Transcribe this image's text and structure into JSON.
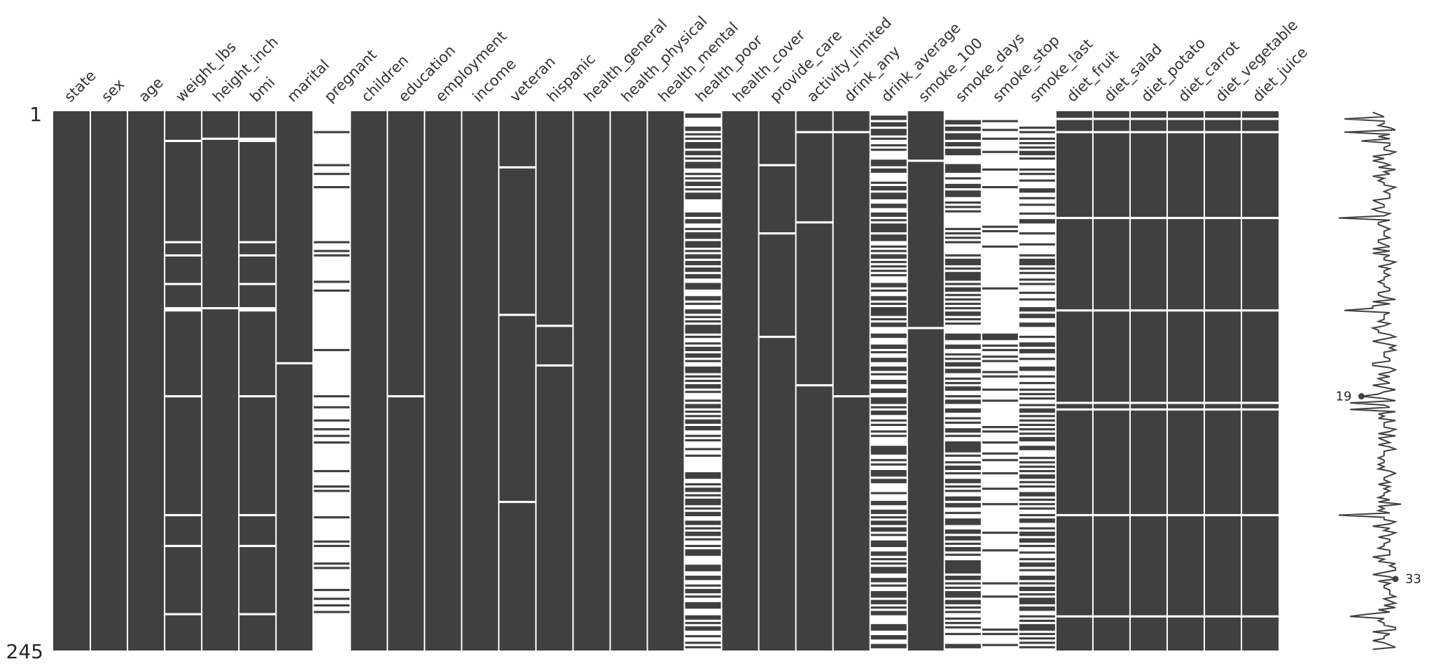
{
  "chart_data": {
    "type": "missingness-matrix",
    "n_rows": 245,
    "row_tick_labels": [
      "1",
      "245"
    ],
    "filled_color": "#404040",
    "missing_color": "#ffffff",
    "columns": [
      {
        "name": "state",
        "missing_rows": []
      },
      {
        "name": "sex",
        "missing_rows": []
      },
      {
        "name": "age",
        "missing_rows": []
      },
      {
        "name": "weight_lbs",
        "missing_rows": [
          14,
          60,
          66,
          79,
          90,
          91,
          130,
          184,
          198,
          229
        ]
      },
      {
        "name": "height_inch",
        "missing_rows": [
          13,
          90
        ]
      },
      {
        "name": "bmi",
        "missing_rows": [
          13,
          14,
          60,
          66,
          79,
          90,
          91,
          130,
          184,
          198,
          229
        ]
      },
      {
        "name": "marital",
        "missing_rows": [
          115
        ]
      },
      {
        "name": "pregnant",
        "filled_rows": [
          10,
          25,
          29,
          35,
          60,
          64,
          66,
          78,
          82,
          109,
          130,
          135,
          141,
          145,
          148,
          151,
          164,
          171,
          173,
          185,
          196,
          198,
          206,
          208,
          218,
          222,
          225,
          228
        ]
      },
      {
        "name": "children",
        "missing_rows": []
      },
      {
        "name": "education",
        "missing_rows": [
          130
        ]
      },
      {
        "name": "employment",
        "missing_rows": []
      },
      {
        "name": "income",
        "missing_rows": []
      },
      {
        "name": "veteran",
        "missing_rows": [
          26,
          93,
          178
        ]
      },
      {
        "name": "hispanic",
        "missing_rows": [
          98,
          116
        ]
      },
      {
        "name": "health_general",
        "missing_rows": []
      },
      {
        "name": "health_physical",
        "missing_rows": []
      },
      {
        "name": "health_mental",
        "missing_rows": []
      },
      {
        "name": "health_poor",
        "filled_rows": [
          2,
          3,
          8,
          9,
          11,
          13,
          15,
          16,
          17,
          19,
          20,
          22,
          24,
          25,
          26,
          29,
          31,
          33,
          34,
          36,
          38,
          39,
          40,
          47,
          48,
          50,
          51,
          54,
          56,
          57,
          58,
          60,
          61,
          62,
          64,
          66,
          67,
          69,
          70,
          72,
          73,
          75,
          76,
          79,
          80,
          81,
          85,
          86,
          88,
          91,
          92,
          94,
          96,
          98,
          99,
          100,
          101,
          103,
          106,
          108,
          109,
          111,
          112,
          114,
          117,
          118,
          119,
          121,
          123,
          125,
          126,
          128,
          132,
          134,
          135,
          137,
          139,
          141,
          142,
          144,
          145,
          148,
          150,
          154,
          157,
          165,
          166,
          167,
          170,
          172,
          173,
          175,
          177,
          178,
          179,
          181,
          183,
          184,
          187,
          188,
          190,
          192,
          193,
          195,
          198,
          200,
          201,
          202,
          207,
          208,
          209,
          212,
          213,
          216,
          218,
          219,
          221,
          224,
          225,
          226,
          230,
          231,
          233,
          235,
          236,
          239,
          242,
          244
        ]
      },
      {
        "name": "health_cover",
        "missing_rows": []
      },
      {
        "name": "provide_care",
        "missing_rows": [
          25,
          56,
          103
        ]
      },
      {
        "name": "activity_limited",
        "missing_rows": [
          10,
          51,
          125
        ]
      },
      {
        "name": "drink_any",
        "missing_rows": [
          10,
          130
        ]
      },
      {
        "name": "drink_average",
        "filled_rows": [
          3,
          4,
          6,
          7,
          9,
          10,
          11,
          13,
          16,
          18,
          23,
          24,
          25,
          27,
          28,
          33,
          35,
          36,
          38,
          39,
          40,
          43,
          44,
          47,
          48,
          50,
          52,
          53,
          54,
          55,
          57,
          58,
          59,
          62,
          64,
          66,
          67,
          69,
          71,
          73,
          75,
          79,
          80,
          82,
          85,
          86,
          88,
          90,
          91,
          92,
          93,
          95,
          97,
          98,
          102,
          103,
          107,
          108,
          110,
          113,
          114,
          117,
          118,
          120,
          123,
          124,
          127,
          128,
          131,
          132,
          133,
          135,
          137,
          138,
          141,
          143,
          146,
          148,
          153,
          154,
          155,
          156,
          159,
          161,
          164,
          165,
          166,
          168,
          169,
          174,
          178,
          179,
          182,
          183,
          185,
          187,
          188,
          190,
          191,
          193,
          196,
          197,
          198,
          201,
          202,
          204,
          206,
          208,
          209,
          210,
          213,
          214,
          216,
          219,
          220,
          221,
          223,
          224,
          226,
          228,
          229,
          234,
          235,
          236,
          239,
          240,
          243,
          244
        ]
      },
      {
        "name": "smoke_100",
        "missing_rows": [
          23,
          99
        ]
      },
      {
        "name": "smoke_days",
        "filled_rows": [
          5,
          6,
          8,
          9,
          11,
          12,
          13,
          15,
          16,
          18,
          19,
          20,
          25,
          26,
          27,
          28,
          31,
          34,
          35,
          37,
          38,
          39,
          42,
          44,
          46,
          54,
          56,
          58,
          60,
          66,
          68,
          69,
          70,
          72,
          74,
          75,
          76,
          77,
          79,
          81,
          82,
          84,
          86,
          88,
          90,
          92,
          93,
          95,
          97,
          102,
          103,
          104,
          107,
          108,
          111,
          113,
          115,
          116,
          118,
          119,
          122,
          124,
          126,
          127,
          130,
          132,
          133,
          136,
          137,
          140,
          142,
          145,
          146,
          148,
          151,
          152,
          153,
          154,
          155,
          157,
          160,
          162,
          163,
          165,
          168,
          169,
          171,
          173,
          176,
          177,
          179,
          180,
          183,
          186,
          187,
          188,
          191,
          192,
          194,
          195,
          197,
          199,
          200,
          202,
          205,
          206,
          207,
          208,
          209,
          210,
          212,
          213,
          215,
          217,
          219,
          220,
          221,
          223,
          224,
          226,
          228,
          231,
          233,
          235,
          238,
          243,
          244
        ]
      },
      {
        "name": "smoke_stop",
        "filled_rows": [
          5,
          9,
          13,
          19,
          27,
          35,
          53,
          55,
          62,
          81,
          102,
          103,
          104,
          107,
          109,
          112,
          114,
          119,
          121,
          127,
          132,
          144,
          146,
          151,
          156,
          159,
          165,
          172,
          179,
          192,
          200,
          215,
          221,
          236,
          238,
          243
        ]
      },
      {
        "name": "smoke_last",
        "filled_rows": [
          8,
          10,
          13,
          15,
          17,
          19,
          20,
          22,
          27,
          29,
          32,
          36,
          37,
          40,
          43,
          47,
          50,
          51,
          56,
          61,
          66,
          68,
          69,
          70,
          72,
          74,
          77,
          79,
          83,
          86,
          90,
          91,
          93,
          94,
          97,
          98,
          103,
          106,
          107,
          109,
          110,
          113,
          117,
          118,
          121,
          124,
          127,
          129,
          131,
          134,
          136,
          137,
          139,
          141,
          143,
          145,
          147,
          149,
          150,
          153,
          154,
          158,
          160,
          162,
          164,
          166,
          167,
          169,
          171,
          174,
          175,
          177,
          179,
          181,
          184,
          186,
          187,
          190,
          192,
          193,
          195,
          196,
          198,
          201,
          204,
          206,
          207,
          209,
          212,
          213,
          215,
          217,
          218,
          220,
          222,
          223,
          224,
          226,
          227,
          230,
          232,
          234,
          235,
          236,
          238,
          240,
          242,
          244
        ]
      },
      {
        "name": "diet_fruit",
        "missing_rows": [
          4,
          10,
          49,
          91,
          133,
          136,
          184,
          230
        ]
      },
      {
        "name": "diet_salad",
        "missing_rows": [
          4,
          10,
          49,
          91,
          133,
          136,
          184,
          230
        ]
      },
      {
        "name": "diet_potato",
        "missing_rows": [
          4,
          10,
          49,
          91,
          133,
          136,
          184,
          230
        ]
      },
      {
        "name": "diet_carrot",
        "missing_rows": [
          4,
          10,
          49,
          91,
          133,
          136,
          184,
          230
        ]
      },
      {
        "name": "diet_vegetable",
        "missing_rows": [
          4,
          10,
          49,
          91,
          133,
          136,
          184,
          230
        ]
      },
      {
        "name": "diet_juice",
        "missing_rows": [
          4,
          10,
          49,
          91,
          133,
          136,
          184,
          230
        ]
      }
    ],
    "sparkline": {
      "min_label": "19",
      "max_label": "33",
      "min_row": 130,
      "max_row": 213
    }
  }
}
